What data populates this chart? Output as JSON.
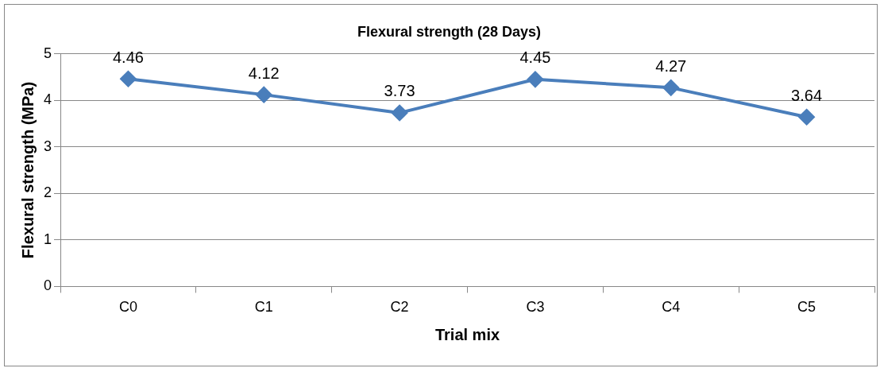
{
  "chart_data": {
    "type": "line",
    "title": "Flexural strength (28 Days)",
    "xlabel": "Trial mix",
    "ylabel": "Flexural strength (MPa)",
    "categories": [
      "C0",
      "C1",
      "C2",
      "C3",
      "C4",
      "C5"
    ],
    "series": [
      {
        "color": "#4a7ebb",
        "values": [
          4.46,
          4.12,
          3.73,
          4.45,
          4.27,
          3.64
        ]
      }
    ],
    "ylim": [
      0,
      5
    ],
    "yticks": [
      0,
      1,
      2,
      3,
      4,
      5
    ],
    "grid": "y",
    "legend": false,
    "marker": "diamond",
    "line_style": "solid",
    "data_labels": true
  }
}
